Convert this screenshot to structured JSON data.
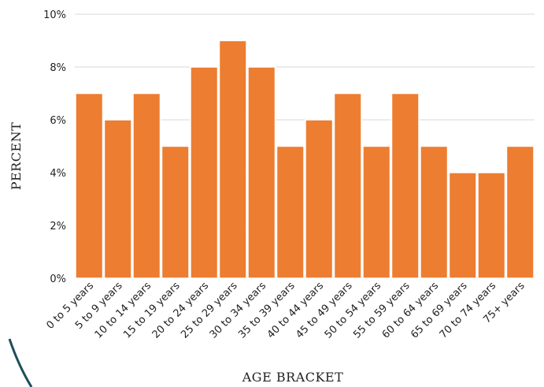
{
  "chart_data": {
    "type": "bar",
    "xlabel": "AGE BRACKET",
    "ylabel": "PERCENT",
    "ylim": [
      0,
      10
    ],
    "yticks": [
      0,
      2,
      4,
      6,
      8,
      10
    ],
    "ytick_suffix": "%",
    "grid": true,
    "legend": "none",
    "bar_color": "#ed7d31",
    "categories": [
      "0 to 5 years",
      "5 to 9 years",
      "10 to 14 years",
      "15 to 19 years",
      "20 to 24 years",
      "25 to 29 years",
      "30 to 34 years",
      "35 to 39 years",
      "40 to 44 years",
      "45 to 49 years",
      "50 to 54 years",
      "55 to 59 years",
      "60 to 64 years",
      "65 to 69 years",
      "70 to 74 years",
      "75+ years"
    ],
    "values": [
      7,
      6,
      7,
      5,
      8,
      9,
      8,
      5,
      6,
      7,
      5,
      7,
      5,
      4,
      4,
      5
    ]
  },
  "decoration_color": "#1f4e5c"
}
